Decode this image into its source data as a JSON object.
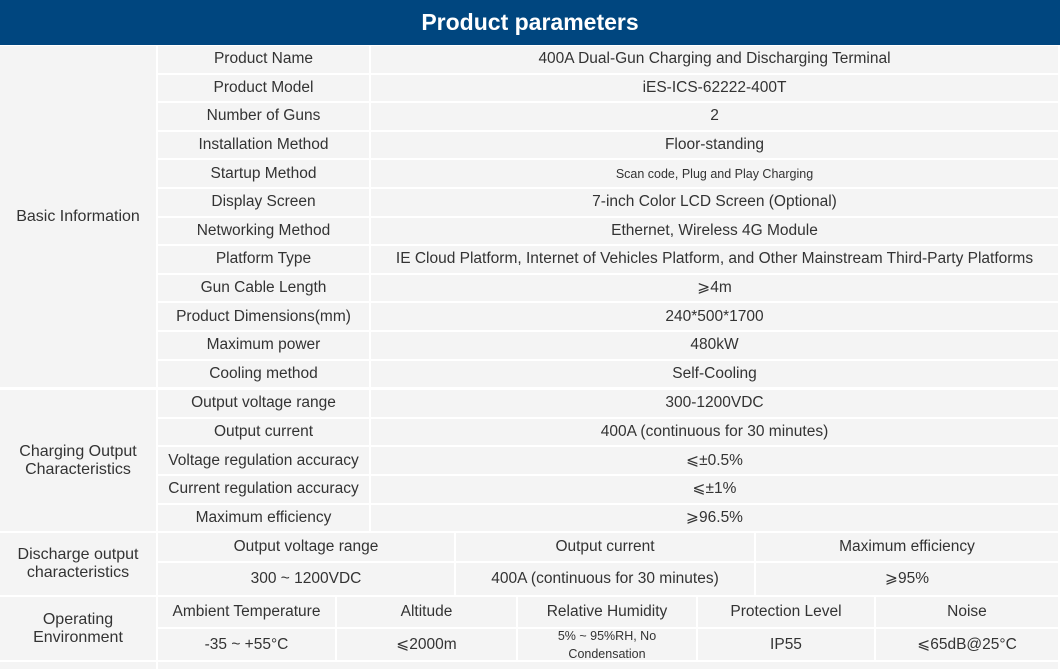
{
  "title": "Product parameters",
  "colors": {
    "header_bg": "#00467f",
    "cell_bg": "#f4f4f4",
    "text": "#333333"
  },
  "sections": [
    {
      "name": "Basic Information",
      "rows": [
        {
          "label": "Product Name",
          "value": "400A Dual-Gun Charging and Discharging Terminal"
        },
        {
          "label": "Product Model",
          "value": "iES-ICS-62222-400T"
        },
        {
          "label": "Number of Guns",
          "value": "2"
        },
        {
          "label": "Installation Method",
          "value": "Floor-standing"
        },
        {
          "label": "Startup Method",
          "value": "Scan code, Plug and Play Charging"
        },
        {
          "label": "Display Screen",
          "value": "7-inch Color LCD Screen (Optional)"
        },
        {
          "label": "Networking Method",
          "value": "Ethernet, Wireless 4G Module"
        },
        {
          "label": "Platform Type",
          "value": "IE Cloud Platform, Internet of Vehicles Platform, and Other Mainstream Third-Party Platforms"
        },
        {
          "label": "Gun Cable Length",
          "value": "⩾4m"
        },
        {
          "label": "Product Dimensions(mm)",
          "value": "240*500*1700"
        },
        {
          "label": "Maximum power",
          "value": "480kW"
        },
        {
          "label": "Cooling method",
          "value": "Self-Cooling"
        }
      ]
    },
    {
      "name": "Charging Output Characteristics",
      "rows": [
        {
          "label": "Output voltage range",
          "value": "300-1200VDC"
        },
        {
          "label": "Output current",
          "value": "400A (continuous for 30 minutes)"
        },
        {
          "label": "Voltage regulation accuracy",
          "value": "⩽±0.5%"
        },
        {
          "label": "Current regulation accuracy",
          "value": "⩽±1%"
        },
        {
          "label": "Maximum efficiency",
          "value": "⩾96.5%"
        }
      ]
    },
    {
      "name": "Discharge output characteristics",
      "headers": [
        "Output voltage range",
        "Output current",
        "Maximum efficiency"
      ],
      "values": [
        "300 ~ 1200VDC",
        "400A (continuous for 30 minutes)",
        "⩾95%"
      ]
    },
    {
      "name": "Operating Environment",
      "headers": [
        "Ambient Temperature",
        "Altitude",
        "Relative Humidity",
        "Protection Level",
        "Noise"
      ],
      "values": [
        "-35 ~ +55°C",
        "⩽2000m",
        "5% ~ 95%RH, No Condensation",
        "IP55",
        "⩽65dB@25°C"
      ]
    }
  ]
}
